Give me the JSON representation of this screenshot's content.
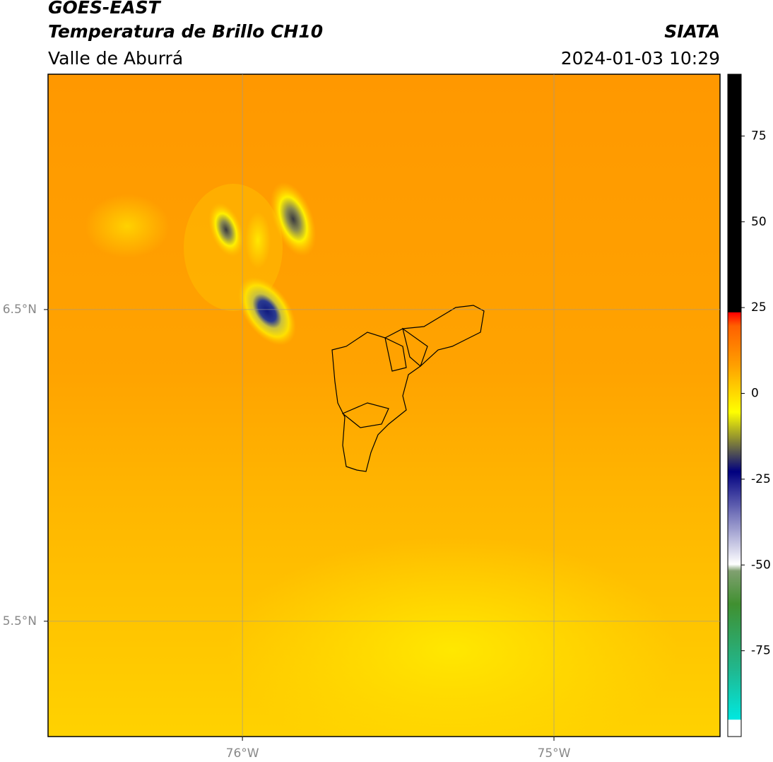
{
  "header": {
    "title": "GOES-EAST",
    "subtitle": "Temperatura de Brillo CH10",
    "region": "Valle de Aburrá",
    "source": "SIATA",
    "timestamp": "2024-01-03 10:29"
  },
  "map": {
    "xlim": [
      -76.624,
      -74.467
    ],
    "ylim": [
      5.13,
      7.255
    ],
    "xticks": [
      {
        "value": -76,
        "label": "76°W"
      },
      {
        "value": -75,
        "label": "75°W"
      }
    ],
    "yticks": [
      {
        "value": 6.5,
        "label": "6.5°N"
      },
      {
        "value": 5.5,
        "label": "5.5°N"
      }
    ]
  },
  "colorbar": {
    "lim": [
      -100,
      93
    ],
    "ticks": [
      75,
      50,
      25,
      0,
      -25,
      -50,
      -75
    ]
  }
}
